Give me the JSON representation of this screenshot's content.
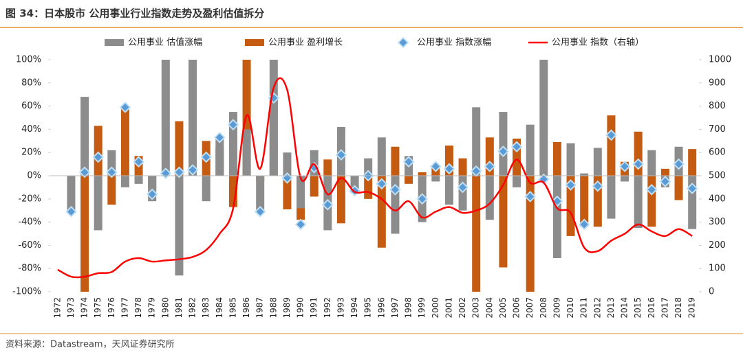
{
  "header": {
    "title": "图 34：日本股市 公用事业行业指数走势及盈利估值拆分"
  },
  "chart_data": {
    "type": "bar",
    "categories": [
      "1972",
      "1973",
      "1974",
      "1975",
      "1976",
      "1977",
      "1978",
      "1979",
      "1980",
      "1981",
      "1982",
      "1983",
      "1984",
      "1985",
      "1986",
      "1987",
      "1988",
      "1989",
      "1990",
      "1991",
      "1992",
      "1993",
      "1994",
      "1995",
      "1996",
      "1997",
      "1998",
      "1999",
      "2000",
      "2001",
      "2002",
      "2003",
      "2004",
      "2005",
      "2006",
      "2007",
      "2008",
      "2009",
      "2010",
      "2011",
      "2012",
      "2013",
      "2014",
      "2015",
      "2016",
      "2017",
      "2018",
      "2019"
    ],
    "series": [
      {
        "name": "公用事业 估值涨幅",
        "type": "bar",
        "color": "#8c8c8c",
        "values": [
          null,
          -30,
          68,
          -47,
          22,
          -10,
          -7,
          -22,
          100,
          -86,
          100,
          -22,
          33,
          55,
          40,
          -30,
          100,
          20,
          -28,
          22,
          -47,
          42,
          -15,
          15,
          33,
          -50,
          17,
          -40,
          -5,
          -25,
          -30,
          59,
          -38,
          55,
          -10,
          44,
          100,
          -71,
          28,
          2,
          24,
          -37,
          -5,
          -45,
          22,
          -10,
          25,
          -46
        ]
      },
      {
        "name": "公用事业 盈利增长",
        "type": "bar",
        "color": "#c55a11",
        "values": [
          null,
          null,
          -100,
          43,
          -25,
          60,
          17,
          -12,
          null,
          47,
          null,
          30,
          25,
          -27,
          100,
          -5,
          66,
          -29,
          -38,
          -18,
          14,
          -41,
          -10,
          -20,
          -62,
          25,
          -7,
          3,
          8,
          26,
          15,
          -100,
          33,
          -79,
          32,
          -100,
          null,
          29,
          -52,
          -44,
          -44,
          52,
          12,
          38,
          -44,
          6,
          -21,
          23
        ]
      },
      {
        "name": "公用事业 指数涨幅",
        "type": "scatter",
        "color": "#5b9bd5",
        "values": [
          null,
          -31,
          3,
          16,
          3,
          59,
          12,
          -16,
          2,
          3,
          5,
          16,
          33,
          44,
          null,
          -31,
          67,
          -2,
          -42,
          7,
          -25,
          18,
          -13,
          0,
          -7,
          -12,
          12,
          -20,
          8,
          6,
          -10,
          4,
          8,
          21,
          25,
          -18,
          -3,
          -22,
          -8,
          -42,
          -9,
          35,
          8,
          10,
          -12,
          -5,
          10,
          -11
        ]
      },
      {
        "name": "公用事业 指数（右轴）",
        "type": "line",
        "axis": "y2",
        "color": "#ff0000",
        "values": [
          95,
          65,
          65,
          80,
          85,
          130,
          145,
          130,
          135,
          140,
          150,
          180,
          250,
          360,
          760,
          530,
          880,
          870,
          490,
          550,
          420,
          490,
          430,
          430,
          400,
          350,
          390,
          320,
          345,
          365,
          340,
          350,
          380,
          460,
          570,
          470,
          470,
          360,
          340,
          190,
          175,
          220,
          250,
          290,
          260,
          240,
          270,
          240
        ]
      }
    ],
    "ylim": [
      -100,
      100
    ],
    "yticks": [
      {
        "value": -100,
        "label": "-100%"
      },
      {
        "value": -80,
        "label": "-80%"
      },
      {
        "value": -60,
        "label": "-60%"
      },
      {
        "value": -40,
        "label": "-40%"
      },
      {
        "value": -20,
        "label": "-20%"
      },
      {
        "value": 0,
        "label": "0%"
      },
      {
        "value": 20,
        "label": "20%"
      },
      {
        "value": 40,
        "label": "40%"
      },
      {
        "value": 60,
        "label": "60%"
      },
      {
        "value": 80,
        "label": "80%"
      },
      {
        "value": 100,
        "label": "100%"
      }
    ],
    "y2lim": [
      0,
      1000
    ],
    "y2ticks": [
      0,
      100,
      200,
      300,
      400,
      500,
      600,
      700,
      800,
      900,
      1000
    ],
    "legend": "top",
    "grid": false
  },
  "footer": {
    "source": "资料来源：Datastream，天风证券研究所"
  }
}
